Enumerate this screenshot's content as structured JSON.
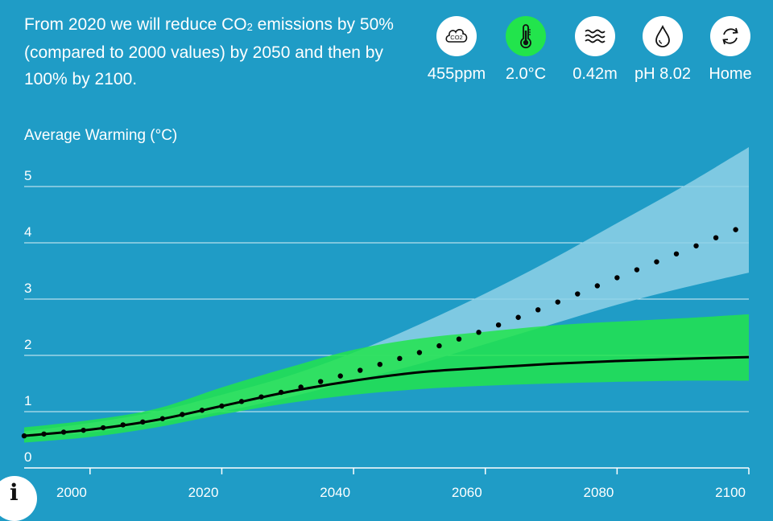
{
  "headline": {
    "before": "From 2020 we will reduce CO",
    "sub": "2",
    "after": " emissions by 50% (compared to 2000 values) by 2050 and then by 100% by 2100."
  },
  "toolbar": {
    "items": [
      {
        "icon": "co2-cloud-icon",
        "value": "455ppm",
        "active": false
      },
      {
        "icon": "thermometer-icon",
        "value": "2.0°C",
        "active": true
      },
      {
        "icon": "waves-icon",
        "value": "0.42m",
        "active": false
      },
      {
        "icon": "droplet-icon",
        "value": "pH 8.02",
        "active": false
      },
      {
        "icon": "refresh-icon",
        "value": "Home",
        "active": false
      }
    ],
    "co2_icon_text": "CO2"
  },
  "info_label": "i",
  "colors": {
    "background": "#1f9cc6",
    "business_as_usual_band": "#8fd1e6",
    "scenario_band": "#22e44c",
    "line": "#000000"
  },
  "chart_data": {
    "type": "line",
    "title": "Average Warming (°C)",
    "xlabel": "",
    "ylabel": "Average Warming (°C)",
    "xlim": [
      1990,
      2100
    ],
    "ylim": [
      0,
      5
    ],
    "yticks": [
      "0",
      "1",
      "2",
      "3",
      "4",
      "5"
    ],
    "xticks": [
      "2000",
      "2020",
      "2040",
      "2060",
      "2080",
      "2100"
    ],
    "grid": true,
    "series": [
      {
        "style": "solid",
        "x": [
          1990,
          2000,
          2010,
          2020,
          2030,
          2040,
          2050,
          2060,
          2070,
          2080,
          2090,
          2100
        ],
        "values": [
          0.57,
          0.68,
          0.85,
          1.1,
          1.35,
          1.55,
          1.7,
          1.78,
          1.85,
          1.9,
          1.94,
          1.97
        ]
      },
      {
        "style": "dotted",
        "x": [
          1990,
          2000,
          2010,
          2020,
          2030,
          2040,
          2050,
          2060,
          2070,
          2080,
          2090,
          2100
        ],
        "values": [
          0.57,
          0.68,
          0.85,
          1.1,
          1.37,
          1.7,
          2.05,
          2.45,
          2.9,
          3.38,
          3.85,
          4.33
        ]
      }
    ],
    "bands": [
      {
        "x": [
          1990,
          2000,
          2010,
          2020,
          2030,
          2040,
          2050,
          2060,
          2070,
          2080,
          2090,
          2100
        ],
        "lower": [
          0.55,
          0.63,
          0.8,
          1.0,
          1.25,
          1.55,
          1.85,
          2.2,
          2.55,
          2.9,
          3.2,
          3.47
        ],
        "upper": [
          0.65,
          0.8,
          1.0,
          1.3,
          1.63,
          2.05,
          2.55,
          3.1,
          3.7,
          4.35,
          5.0,
          5.7
        ]
      },
      {
        "x": [
          1990,
          2000,
          2010,
          2020,
          2030,
          2040,
          2050,
          2060,
          2070,
          2080,
          2090,
          2100
        ],
        "lower": [
          0.45,
          0.55,
          0.72,
          0.95,
          1.15,
          1.3,
          1.4,
          1.46,
          1.5,
          1.53,
          1.55,
          1.55
        ],
        "upper": [
          0.72,
          0.85,
          1.05,
          1.43,
          1.78,
          2.1,
          2.3,
          2.42,
          2.53,
          2.6,
          2.66,
          2.73
        ]
      }
    ]
  }
}
